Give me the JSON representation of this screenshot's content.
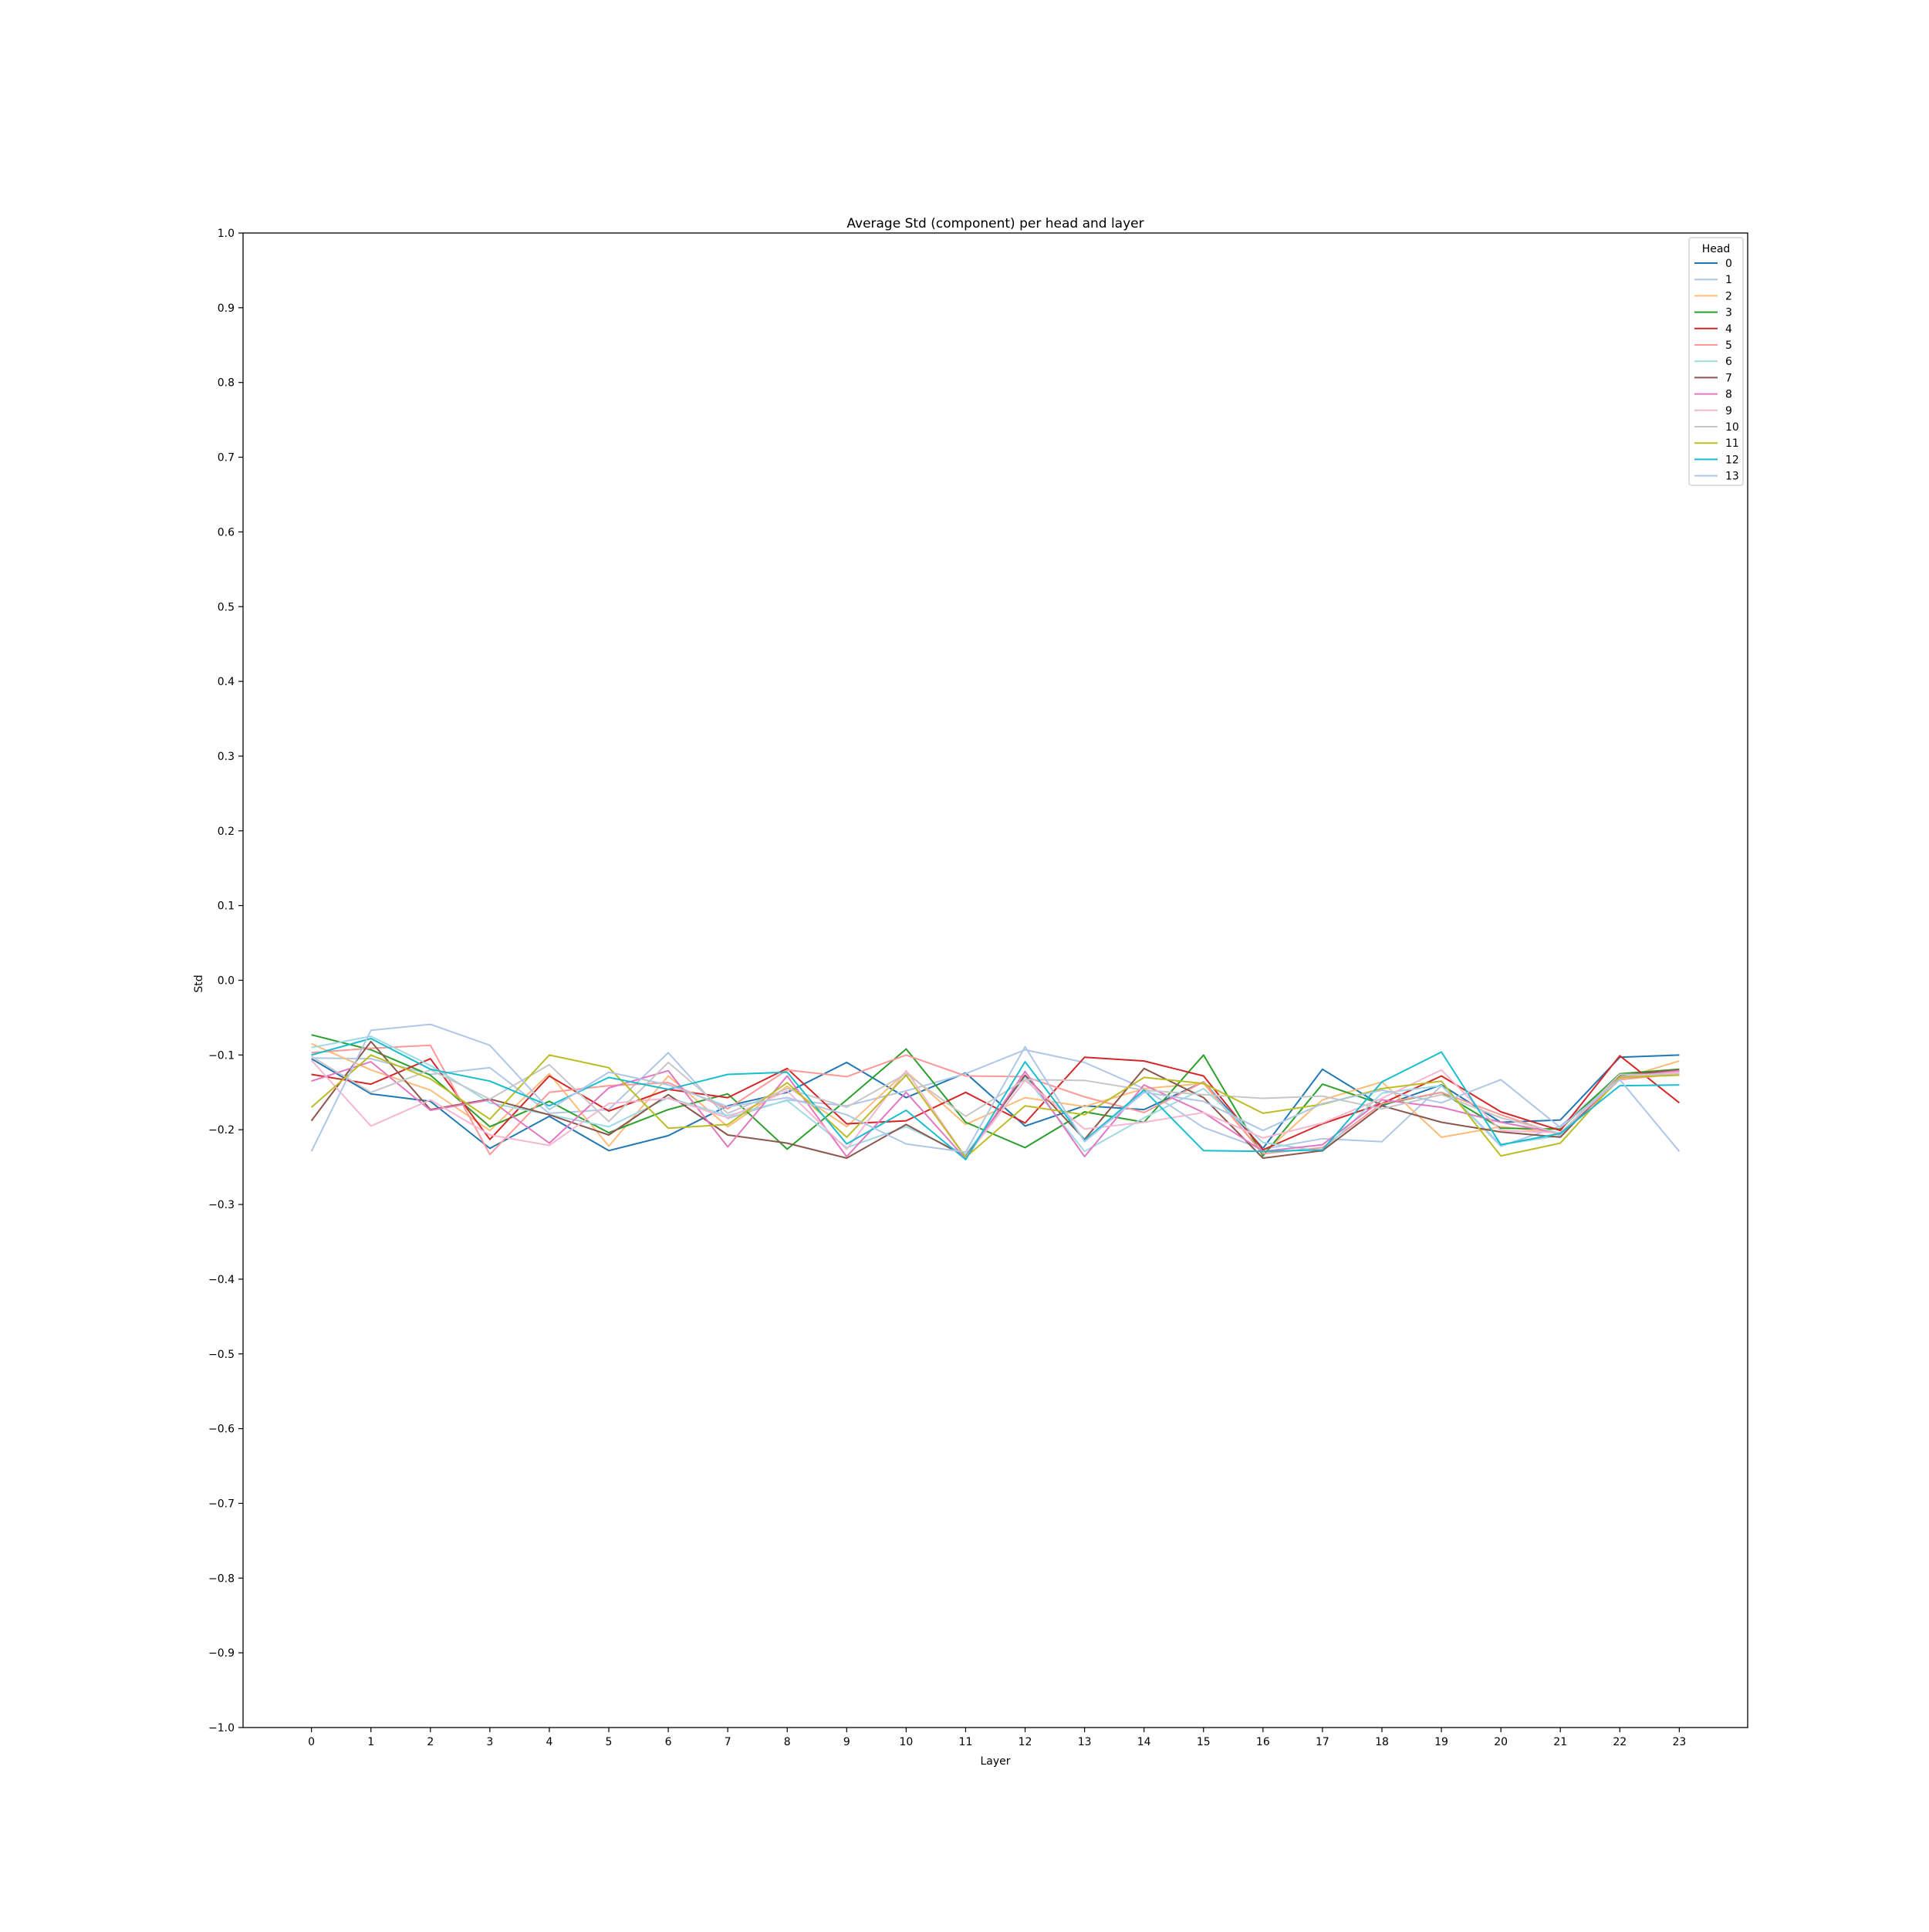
{
  "chart_data": {
    "type": "line",
    "title": "Average Std (component) per head and layer",
    "xlabel": "Layer",
    "ylabel": "Std",
    "ylim": [
      -1.0,
      1.0
    ],
    "xlim": [
      -1.15,
      24.15
    ],
    "x": [
      0,
      1,
      2,
      3,
      4,
      5,
      6,
      7,
      8,
      9,
      10,
      11,
      12,
      13,
      14,
      15,
      16,
      17,
      18,
      19,
      20,
      21,
      22,
      23
    ],
    "xticks": [
      "0",
      "1",
      "2",
      "3",
      "4",
      "5",
      "6",
      "7",
      "8",
      "9",
      "10",
      "11",
      "12",
      "13",
      "14",
      "15",
      "16",
      "17",
      "18",
      "19",
      "20",
      "21",
      "22",
      "23"
    ],
    "yticks": [
      1.0,
      0.9,
      0.8,
      0.7,
      0.6,
      0.5,
      0.4,
      0.3,
      0.2,
      0.1,
      0.0,
      -0.1,
      -0.2,
      -0.3,
      -0.4,
      -0.5,
      -0.6,
      -0.7,
      -0.8,
      -0.9,
      -1.0
    ],
    "ytick_labels": [
      "1.0",
      "0.9",
      "0.8",
      "0.7",
      "0.6",
      "0.5",
      "0.4",
      "0.3",
      "0.2",
      "0.1",
      "0.0",
      "−0.1",
      "−0.2",
      "−0.3",
      "−0.4",
      "−0.5",
      "−0.6",
      "−0.7",
      "−0.8",
      "−0.9",
      "−1.0"
    ],
    "grid": false,
    "legend": {
      "title": "Head",
      "placement": "top-right"
    },
    "series": [
      {
        "name": "0",
        "color": "#1f77b4",
        "values": [
          -0.105,
          -0.152,
          -0.162,
          -0.225,
          -0.182,
          -0.228,
          -0.208,
          -0.168,
          -0.15,
          -0.11,
          -0.157,
          -0.124,
          -0.195,
          -0.168,
          -0.173,
          -0.136,
          -0.225,
          -0.119,
          -0.168,
          -0.14,
          -0.19,
          -0.187,
          -0.103,
          -0.1
        ]
      },
      {
        "name": "1",
        "color": "#aec7e8",
        "values": [
          -0.104,
          -0.105,
          -0.126,
          -0.117,
          -0.178,
          -0.173,
          -0.097,
          -0.185,
          -0.16,
          -0.168,
          -0.148,
          -0.125,
          -0.093,
          -0.11,
          -0.145,
          -0.197,
          -0.226,
          -0.212,
          -0.216,
          -0.141,
          -0.222,
          -0.195,
          -0.127,
          -0.122
        ]
      },
      {
        "name": "2",
        "color": "#ffbb78",
        "values": [
          -0.085,
          -0.12,
          -0.147,
          -0.201,
          -0.125,
          -0.222,
          -0.128,
          -0.196,
          -0.142,
          -0.196,
          -0.122,
          -0.193,
          -0.157,
          -0.169,
          -0.145,
          -0.138,
          -0.232,
          -0.16,
          -0.136,
          -0.21,
          -0.196,
          -0.205,
          -0.132,
          -0.108
        ]
      },
      {
        "name": "3",
        "color": "#2ca02c",
        "values": [
          -0.073,
          -0.093,
          -0.127,
          -0.196,
          -0.162,
          -0.204,
          -0.173,
          -0.152,
          -0.226,
          -0.16,
          -0.092,
          -0.19,
          -0.224,
          -0.176,
          -0.19,
          -0.1,
          -0.235,
          -0.139,
          -0.166,
          -0.15,
          -0.198,
          -0.199,
          -0.125,
          -0.119
        ]
      },
      {
        "name": "4",
        "color": "#d62728",
        "values": [
          -0.126,
          -0.139,
          -0.105,
          -0.213,
          -0.128,
          -0.175,
          -0.146,
          -0.157,
          -0.118,
          -0.192,
          -0.188,
          -0.15,
          -0.191,
          -0.103,
          -0.108,
          -0.128,
          -0.227,
          -0.192,
          -0.165,
          -0.128,
          -0.176,
          -0.201,
          -0.101,
          -0.164
        ]
      },
      {
        "name": "5",
        "color": "#ff9896",
        "values": [
          -0.097,
          -0.091,
          -0.087,
          -0.233,
          -0.15,
          -0.141,
          -0.137,
          -0.172,
          -0.12,
          -0.129,
          -0.1,
          -0.128,
          -0.129,
          -0.156,
          -0.177,
          -0.136,
          -0.232,
          -0.224,
          -0.165,
          -0.15,
          -0.18,
          -0.207,
          -0.133,
          -0.125
        ]
      },
      {
        "name": "6",
        "color": "#9edae5",
        "values": [
          -0.09,
          -0.075,
          -0.114,
          -0.164,
          -0.18,
          -0.196,
          -0.157,
          -0.181,
          -0.161,
          -0.224,
          -0.196,
          -0.233,
          -0.129,
          -0.229,
          -0.184,
          -0.145,
          -0.217,
          -0.229,
          -0.151,
          -0.141,
          -0.22,
          -0.208,
          -0.128,
          -0.124
        ]
      },
      {
        "name": "7",
        "color": "#8c564b",
        "values": [
          -0.188,
          -0.082,
          -0.173,
          -0.159,
          -0.18,
          -0.207,
          -0.153,
          -0.207,
          -0.218,
          -0.238,
          -0.193,
          -0.236,
          -0.127,
          -0.213,
          -0.118,
          -0.157,
          -0.238,
          -0.228,
          -0.168,
          -0.19,
          -0.203,
          -0.21,
          -0.127,
          -0.12
        ]
      },
      {
        "name": "8",
        "color": "#e377c2",
        "values": [
          -0.135,
          -0.109,
          -0.174,
          -0.16,
          -0.218,
          -0.144,
          -0.121,
          -0.223,
          -0.128,
          -0.236,
          -0.15,
          -0.239,
          -0.122,
          -0.236,
          -0.14,
          -0.177,
          -0.229,
          -0.22,
          -0.16,
          -0.17,
          -0.19,
          -0.205,
          -0.13,
          -0.121
        ]
      },
      {
        "name": "9",
        "color": "#f7b6d2",
        "values": [
          -0.107,
          -0.195,
          -0.16,
          -0.207,
          -0.221,
          -0.165,
          -0.158,
          -0.184,
          -0.148,
          -0.226,
          -0.121,
          -0.237,
          -0.134,
          -0.199,
          -0.19,
          -0.177,
          -0.211,
          -0.191,
          -0.158,
          -0.12,
          -0.201,
          -0.204,
          -0.13,
          -0.123
        ]
      },
      {
        "name": "10",
        "color": "#c7c7c7",
        "values": [
          -0.102,
          -0.15,
          -0.12,
          -0.159,
          -0.113,
          -0.189,
          -0.11,
          -0.178,
          -0.145,
          -0.17,
          -0.125,
          -0.182,
          -0.133,
          -0.134,
          -0.147,
          -0.153,
          -0.158,
          -0.155,
          -0.172,
          -0.153,
          -0.184,
          -0.205,
          -0.126,
          -0.126
        ]
      },
      {
        "name": "11",
        "color": "#bcbd22",
        "values": [
          -0.17,
          -0.1,
          -0.132,
          -0.186,
          -0.1,
          -0.117,
          -0.198,
          -0.193,
          -0.137,
          -0.21,
          -0.127,
          -0.237,
          -0.168,
          -0.18,
          -0.13,
          -0.138,
          -0.178,
          -0.166,
          -0.145,
          -0.135,
          -0.235,
          -0.218,
          -0.13,
          -0.127
        ]
      },
      {
        "name": "12",
        "color": "#17becf",
        "values": [
          -0.1,
          -0.078,
          -0.119,
          -0.135,
          -0.168,
          -0.13,
          -0.146,
          -0.126,
          -0.123,
          -0.219,
          -0.174,
          -0.24,
          -0.109,
          -0.214,
          -0.147,
          -0.228,
          -0.229,
          -0.227,
          -0.136,
          -0.096,
          -0.22,
          -0.205,
          -0.141,
          -0.14
        ]
      },
      {
        "name": "13",
        "color": "#aec7e8",
        "values": [
          -0.229,
          -0.067,
          -0.059,
          -0.087,
          -0.173,
          -0.123,
          -0.14,
          -0.169,
          -0.157,
          -0.18,
          -0.219,
          -0.23,
          -0.089,
          -0.216,
          -0.15,
          -0.162,
          -0.201,
          -0.165,
          -0.147,
          -0.164,
          -0.133,
          -0.197,
          -0.133,
          -0.229
        ]
      }
    ]
  }
}
